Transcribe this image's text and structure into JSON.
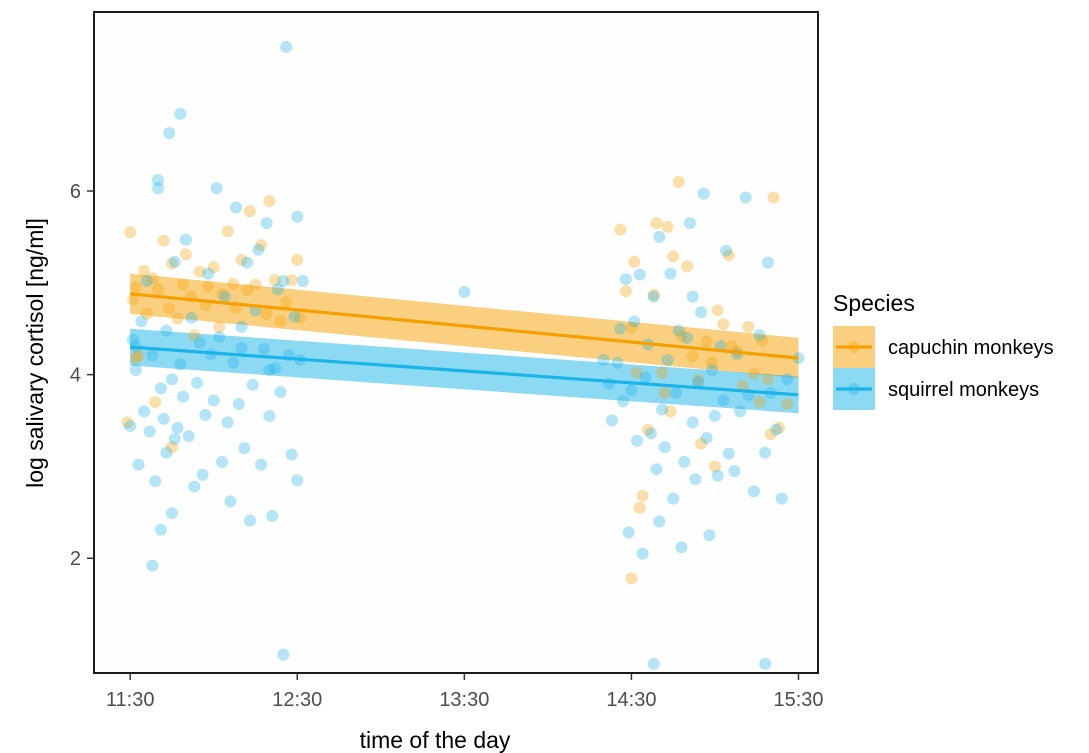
{
  "chart_data": {
    "type": "scatter",
    "title": "",
    "xlabel": "time of the day",
    "ylabel": "log salivary cortisol [ng/ml]",
    "x_ticks": [
      "11:30",
      "12:30",
      "13:30",
      "14:30",
      "15:30"
    ],
    "y_ticks": [
      2,
      4,
      6
    ],
    "xlim": [
      "11:17",
      "15:37"
    ],
    "ylim": [
      0.75,
      7.95
    ],
    "grid": false,
    "legend": {
      "title": "Species",
      "position": "right"
    },
    "series": [
      {
        "name": "capuchin monkeys",
        "color": "#f5a000",
        "fit": {
          "x_start": "11:30",
          "y_start": 4.88,
          "x_end": "15:30",
          "y_end": 4.18,
          "ci_width": 0.22
        },
        "points": [
          [
            "11:30",
            5.55
          ],
          [
            "11:31",
            4.82
          ],
          [
            "11:32",
            4.95
          ],
          [
            "11:33",
            4.21
          ],
          [
            "11:35",
            5.13
          ],
          [
            "11:36",
            4.66
          ],
          [
            "11:38",
            5.05
          ],
          [
            "11:39",
            3.7
          ],
          [
            "11:40",
            4.93
          ],
          [
            "11:42",
            5.46
          ],
          [
            "11:44",
            4.72
          ],
          [
            "11:45",
            5.21
          ],
          [
            "11:47",
            4.61
          ],
          [
            "11:49",
            4.98
          ],
          [
            "11:50",
            5.31
          ],
          [
            "11:52",
            4.85
          ],
          [
            "11:53",
            4.43
          ],
          [
            "11:55",
            5.12
          ],
          [
            "11:57",
            4.76
          ],
          [
            "11:58",
            4.96
          ],
          [
            "12:00",
            5.17
          ],
          [
            "12:02",
            4.52
          ],
          [
            "12:03",
            4.88
          ],
          [
            "12:05",
            5.56
          ],
          [
            "12:07",
            4.99
          ],
          [
            "12:08",
            4.73
          ],
          [
            "12:10",
            5.25
          ],
          [
            "12:12",
            4.92
          ],
          [
            "12:13",
            5.78
          ],
          [
            "12:15",
            4.98
          ],
          [
            "12:17",
            5.41
          ],
          [
            "12:19",
            4.66
          ],
          [
            "12:20",
            5.89
          ],
          [
            "12:22",
            5.03
          ],
          [
            "12:24",
            4.58
          ],
          [
            "12:26",
            4.79
          ],
          [
            "12:28",
            5.03
          ],
          [
            "12:30",
            5.25
          ],
          [
            "12:31",
            4.62
          ],
          [
            "11:29",
            3.48
          ],
          [
            "11:32",
            4.18
          ],
          [
            "11:45",
            3.21
          ],
          [
            "14:26",
            5.58
          ],
          [
            "14:28",
            4.91
          ],
          [
            "14:30",
            4.51
          ],
          [
            "14:31",
            5.23
          ],
          [
            "14:32",
            4.02
          ],
          [
            "14:33",
            2.55
          ],
          [
            "14:34",
            2.68
          ],
          [
            "14:36",
            3.4
          ],
          [
            "14:38",
            4.87
          ],
          [
            "14:39",
            5.65
          ],
          [
            "14:41",
            4.02
          ],
          [
            "14:42",
            3.8
          ],
          [
            "14:43",
            5.61
          ],
          [
            "14:45",
            5.29
          ],
          [
            "14:47",
            6.1
          ],
          [
            "14:48",
            4.42
          ],
          [
            "14:50",
            5.18
          ],
          [
            "14:52",
            4.2
          ],
          [
            "14:54",
            3.94
          ],
          [
            "14:55",
            3.25
          ],
          [
            "14:57",
            4.36
          ],
          [
            "14:59",
            4.13
          ],
          [
            "15:01",
            4.7
          ],
          [
            "15:03",
            4.55
          ],
          [
            "15:05",
            5.3
          ],
          [
            "15:06",
            4.31
          ],
          [
            "15:08",
            4.25
          ],
          [
            "15:10",
            3.88
          ],
          [
            "15:12",
            4.52
          ],
          [
            "15:14",
            4.01
          ],
          [
            "15:16",
            3.7
          ],
          [
            "15:17",
            4.37
          ],
          [
            "15:19",
            3.95
          ],
          [
            "15:21",
            5.93
          ],
          [
            "15:23",
            3.42
          ],
          [
            "15:26",
            3.68
          ],
          [
            "14:30",
            1.78
          ],
          [
            "15:00",
            3.0
          ],
          [
            "15:20",
            3.35
          ],
          [
            "14:44",
            3.6
          ]
        ]
      },
      {
        "name": "squirrel monkeys",
        "color": "#1ab4e8",
        "fit": {
          "x_start": "11:30",
          "y_start": 4.3,
          "x_end": "15:30",
          "y_end": 3.78,
          "ci_width": 0.2
        },
        "points": [
          [
            "11:30",
            3.44
          ],
          [
            "11:31",
            4.38
          ],
          [
            "11:32",
            4.05
          ],
          [
            "11:33",
            3.02
          ],
          [
            "11:34",
            4.58
          ],
          [
            "11:35",
            3.6
          ],
          [
            "11:36",
            5.02
          ],
          [
            "11:37",
            3.38
          ],
          [
            "11:38",
            4.21
          ],
          [
            "11:39",
            2.84
          ],
          [
            "11:40",
            6.03
          ],
          [
            "11:40",
            6.12
          ],
          [
            "11:41",
            3.85
          ],
          [
            "11:41",
            2.31
          ],
          [
            "11:42",
            3.52
          ],
          [
            "11:43",
            3.15
          ],
          [
            "11:43",
            4.48
          ],
          [
            "11:44",
            6.63
          ],
          [
            "11:45",
            3.95
          ],
          [
            "11:45",
            2.49
          ],
          [
            "11:46",
            5.23
          ],
          [
            "11:47",
            3.42
          ],
          [
            "11:48",
            6.84
          ],
          [
            "11:48",
            4.11
          ],
          [
            "11:49",
            3.76
          ],
          [
            "11:50",
            5.47
          ],
          [
            "11:51",
            3.33
          ],
          [
            "11:52",
            4.62
          ],
          [
            "11:53",
            2.78
          ],
          [
            "11:54",
            3.91
          ],
          [
            "11:55",
            4.35
          ],
          [
            "11:56",
            2.91
          ],
          [
            "11:57",
            3.56
          ],
          [
            "11:58",
            5.1
          ],
          [
            "11:59",
            4.22
          ],
          [
            "12:00",
            3.72
          ],
          [
            "12:01",
            6.03
          ],
          [
            "12:02",
            4.41
          ],
          [
            "12:03",
            3.05
          ],
          [
            "12:04",
            4.85
          ],
          [
            "12:05",
            3.48
          ],
          [
            "12:06",
            2.62
          ],
          [
            "12:07",
            4.13
          ],
          [
            "12:08",
            5.82
          ],
          [
            "12:09",
            3.68
          ],
          [
            "12:10",
            4.52
          ],
          [
            "12:11",
            3.2
          ],
          [
            "12:12",
            5.22
          ],
          [
            "12:13",
            2.41
          ],
          [
            "12:14",
            3.89
          ],
          [
            "12:15",
            4.7
          ],
          [
            "12:16",
            5.36
          ],
          [
            "12:17",
            3.02
          ],
          [
            "12:18",
            4.28
          ],
          [
            "12:19",
            5.65
          ],
          [
            "12:20",
            3.55
          ],
          [
            "12:21",
            2.46
          ],
          [
            "12:22",
            4.07
          ],
          [
            "12:23",
            4.93
          ],
          [
            "12:24",
            3.81
          ],
          [
            "12:25",
            5.02
          ],
          [
            "12:26",
            7.57
          ],
          [
            "12:27",
            4.21
          ],
          [
            "12:28",
            3.13
          ],
          [
            "12:29",
            4.63
          ],
          [
            "12:30",
            2.85
          ],
          [
            "12:30",
            5.72
          ],
          [
            "12:31",
            4.16
          ],
          [
            "12:32",
            5.02
          ],
          [
            "11:38",
            1.92
          ],
          [
            "12:25",
            0.95
          ],
          [
            "11:32",
            4.31
          ],
          [
            "11:46",
            3.3
          ],
          [
            "12:10",
            4.29
          ],
          [
            "12:20",
            4.05
          ],
          [
            "13:30",
            4.9
          ],
          [
            "14:20",
            4.16
          ],
          [
            "14:22",
            3.9
          ],
          [
            "14:23",
            3.5
          ],
          [
            "14:25",
            4.13
          ],
          [
            "14:26",
            4.5
          ],
          [
            "14:27",
            3.71
          ],
          [
            "14:28",
            5.04
          ],
          [
            "14:29",
            2.28
          ],
          [
            "14:30",
            3.83
          ],
          [
            "14:31",
            4.58
          ],
          [
            "14:32",
            3.28
          ],
          [
            "14:33",
            5.09
          ],
          [
            "14:34",
            2.05
          ],
          [
            "14:35",
            3.97
          ],
          [
            "14:36",
            4.33
          ],
          [
            "14:37",
            3.36
          ],
          [
            "14:38",
            4.85
          ],
          [
            "14:39",
            2.97
          ],
          [
            "14:40",
            5.5
          ],
          [
            "14:41",
            3.62
          ],
          [
            "14:42",
            3.21
          ],
          [
            "14:43",
            4.16
          ],
          [
            "14:44",
            5.1
          ],
          [
            "14:45",
            2.65
          ],
          [
            "14:46",
            3.8
          ],
          [
            "14:47",
            4.48
          ],
          [
            "14:48",
            2.12
          ],
          [
            "14:49",
            3.05
          ],
          [
            "14:50",
            4.4
          ],
          [
            "14:51",
            5.65
          ],
          [
            "14:52",
            3.48
          ],
          [
            "14:53",
            2.86
          ],
          [
            "14:54",
            3.92
          ],
          [
            "14:55",
            4.68
          ],
          [
            "14:56",
            5.97
          ],
          [
            "14:57",
            3.31
          ],
          [
            "14:58",
            2.25
          ],
          [
            "14:59",
            4.05
          ],
          [
            "15:00",
            3.55
          ],
          [
            "15:01",
            2.9
          ],
          [
            "15:02",
            4.31
          ],
          [
            "15:03",
            3.72
          ],
          [
            "15:04",
            5.35
          ],
          [
            "15:05",
            3.14
          ],
          [
            "15:07",
            2.95
          ],
          [
            "15:08",
            4.22
          ],
          [
            "15:09",
            3.6
          ],
          [
            "15:11",
            5.93
          ],
          [
            "15:12",
            3.78
          ],
          [
            "15:14",
            2.73
          ],
          [
            "15:16",
            4.43
          ],
          [
            "15:18",
            3.15
          ],
          [
            "15:19",
            5.22
          ],
          [
            "15:20",
            3.8
          ],
          [
            "15:22",
            3.4
          ],
          [
            "15:24",
            2.65
          ],
          [
            "15:26",
            3.95
          ],
          [
            "15:30",
            4.18
          ],
          [
            "14:38",
            0.85
          ],
          [
            "15:18",
            0.85
          ],
          [
            "14:40",
            2.4
          ],
          [
            "14:52",
            4.85
          ]
        ]
      }
    ]
  }
}
